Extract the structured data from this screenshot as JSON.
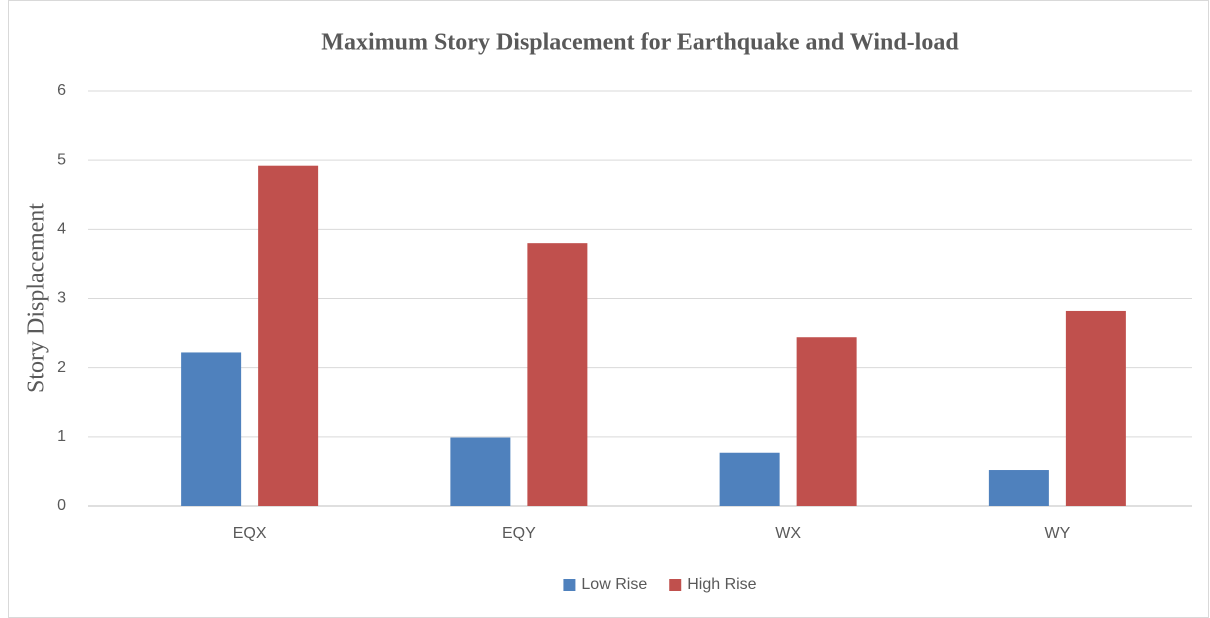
{
  "chart_data": {
    "type": "bar",
    "title": "Maximum Story Displacement for Earthquake and Wind-load",
    "y_label": "Story Displacement",
    "categories": [
      "EQX",
      "EQY",
      "WX",
      "WY"
    ],
    "series": [
      {
        "name": "Low Rise",
        "color": "#4f81bd",
        "values": [
          2.22,
          0.99,
          0.77,
          0.52
        ]
      },
      {
        "name": "High Rise",
        "color": "#c0504d",
        "values": [
          4.92,
          3.8,
          2.44,
          2.82
        ]
      }
    ],
    "ylim": [
      0,
      6
    ],
    "yticks": [
      0,
      1,
      2,
      3,
      4,
      5,
      6
    ],
    "grid": true,
    "legend": "bottom"
  }
}
